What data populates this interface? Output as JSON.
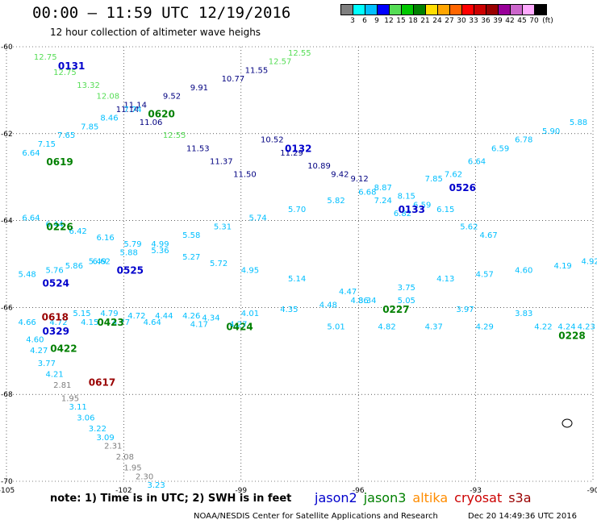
{
  "header": {
    "title": "00:00 – 11:59 UTC 12/19/2016",
    "subtitle": "12 hour collection of altimeter wave heighs"
  },
  "legend": {
    "labels": [
      "3",
      "6",
      "9",
      "12",
      "15",
      "18",
      "21",
      "24",
      "27",
      "30",
      "33",
      "36",
      "39",
      "42",
      "45",
      "70"
    ],
    "unit": "(ft)",
    "colors": [
      "#7f7f7f",
      "#00ffff",
      "#00bfff",
      "#0000ff",
      "#55dd55",
      "#00c800",
      "#008000",
      "#ffdd00",
      "#ffa500",
      "#ff6600",
      "#ff0000",
      "#cc0000",
      "#990000",
      "#990099",
      "#cc66cc",
      "#ffaaff",
      "#000000"
    ]
  },
  "footer": {
    "note": "note: 1) Time is in UTC; 2) SWH is in feet",
    "satellites": [
      {
        "name": "jason2",
        "color": "#0000cc"
      },
      {
        "name": "jason3",
        "color": "#008000"
      },
      {
        "name": "altika",
        "color": "#ff8c00"
      },
      {
        "name": "cryosat",
        "color": "#cc0000"
      },
      {
        "name": "s3a",
        "color": "#990000"
      }
    ],
    "credit": "NOAA/NESDIS Center for Satellite Applications and Research",
    "timestamp": "Dec 20 14:49:36 UTC 2016"
  },
  "chart_data": {
    "type": "scatter",
    "xlim": [
      -105,
      -90
    ],
    "ylim": [
      -70,
      -60
    ],
    "x_ticks": [
      -105,
      -102,
      -99,
      -96,
      -93,
      -90
    ],
    "y_ticks": [
      -60,
      -62,
      -64,
      -66,
      -68,
      -70
    ],
    "tracks": [
      {
        "label": "0131",
        "color": "#0000cc",
        "points": [
          {
            "x": -104.3,
            "y": -60.3,
            "v": "12.75",
            "c": "#55dd55"
          },
          {
            "x": -103.8,
            "y": -60.65,
            "v": "12.75",
            "c": "#55dd55"
          },
          {
            "x": -103.2,
            "y": -60.95,
            "v": "13.32",
            "c": "#55dd55"
          },
          {
            "x": -102.7,
            "y": -61.2,
            "v": "12.08",
            "c": "#55dd55"
          },
          {
            "x": -102.2,
            "y": -61.5,
            "v": "11.14",
            "c": "#000080"
          },
          {
            "x": -101.6,
            "y": -61.8,
            "v": "11.06",
            "c": "#000080"
          },
          {
            "x": -101.0,
            "y": -62.1,
            "v": "12.55",
            "c": "#55dd55"
          },
          {
            "x": -100.4,
            "y": -62.4,
            "v": "11.53",
            "c": "#000080"
          },
          {
            "x": -99.8,
            "y": -62.7,
            "v": "11.37",
            "c": "#000080"
          },
          {
            "x": -99.2,
            "y": -63.0,
            "v": "11.50",
            "c": "#000080"
          }
        ]
      },
      {
        "label": "0620",
        "color": "#008000",
        "points": [
          {
            "x": -102.0,
            "y": -61.4,
            "v": "11.14",
            "c": "#000080"
          },
          {
            "x": -101.0,
            "y": -61.2,
            "v": "9.52",
            "c": "#000080"
          },
          {
            "x": -100.3,
            "y": -61.0,
            "v": "9.91",
            "c": "#000080"
          },
          {
            "x": -99.5,
            "y": -60.8,
            "v": "10.77",
            "c": "#000080"
          },
          {
            "x": -98.9,
            "y": -60.6,
            "v": "11.55",
            "c": "#000080"
          },
          {
            "x": -98.3,
            "y": -60.4,
            "v": "12.57",
            "c": "#55dd55"
          },
          {
            "x": -97.8,
            "y": -60.2,
            "v": "12.55",
            "c": "#55dd55"
          }
        ]
      },
      {
        "label": "0132",
        "color": "#0000cc",
        "points": [
          {
            "x": -98.5,
            "y": -62.2,
            "v": "10.52",
            "c": "#000080"
          },
          {
            "x": -98.0,
            "y": -62.5,
            "v": "11.29",
            "c": "#000080"
          },
          {
            "x": -97.3,
            "y": -62.8,
            "v": "10.89",
            "c": "#000080"
          },
          {
            "x": -96.7,
            "y": -63.0,
            "v": "9.42",
            "c": "#000080"
          },
          {
            "x": -96.2,
            "y": -63.1,
            "v": "9.12",
            "c": "#000080"
          },
          {
            "x": -95.6,
            "y": -63.3,
            "v": "8.87",
            "c": "#00bfff"
          },
          {
            "x": -95.0,
            "y": -63.5,
            "v": "8.15",
            "c": "#00bfff"
          }
        ]
      },
      {
        "label": "0526",
        "color": "#0000cc",
        "points": [
          {
            "x": -94.3,
            "y": -63.1,
            "v": "7.85",
            "c": "#00bfff"
          },
          {
            "x": -93.8,
            "y": -63.0,
            "v": "7.62",
            "c": "#00bfff"
          },
          {
            "x": -93.2,
            "y": -62.7,
            "v": "6.64",
            "c": "#00bfff"
          },
          {
            "x": -92.6,
            "y": -62.4,
            "v": "6.59",
            "c": "#00bfff"
          },
          {
            "x": -92.0,
            "y": -62.2,
            "v": "6.78",
            "c": "#00bfff"
          },
          {
            "x": -91.3,
            "y": -62.0,
            "v": "5.90",
            "c": "#00bfff"
          },
          {
            "x": -90.6,
            "y": -61.8,
            "v": "5.88",
            "c": "#00bfff"
          }
        ]
      },
      {
        "label": "0619",
        "color": "#008000",
        "points": [
          {
            "x": -104.6,
            "y": -62.5,
            "v": "6.64",
            "c": "#00bfff"
          },
          {
            "x": -104.2,
            "y": -62.3,
            "v": "7.15",
            "c": "#00bfff"
          },
          {
            "x": -103.7,
            "y": -62.1,
            "v": "7.65",
            "c": "#00bfff"
          },
          {
            "x": -103.1,
            "y": -61.9,
            "v": "7.85",
            "c": "#00bfff"
          },
          {
            "x": -102.6,
            "y": -61.7,
            "v": "8.46",
            "c": "#00bfff"
          },
          {
            "x": -102.0,
            "y": -61.5,
            "v": "7.74",
            "c": "#00bfff"
          }
        ]
      },
      {
        "label": "0133",
        "color": "#0000cc",
        "points": [
          {
            "x": -95.6,
            "y": -63.6,
            "v": "7.24",
            "c": "#00bfff"
          },
          {
            "x": -95.1,
            "y": -63.9,
            "v": "6.82",
            "c": "#00bfff"
          },
          {
            "x": -94.6,
            "y": -63.7,
            "v": "6.59",
            "c": "#00bfff"
          },
          {
            "x": -94.0,
            "y": -63.8,
            "v": "6.15",
            "c": "#00bfff"
          },
          {
            "x": -93.4,
            "y": -64.2,
            "v": "5.62",
            "c": "#00bfff"
          },
          {
            "x": -92.9,
            "y": -64.4,
            "v": "4.67",
            "c": "#00bfff"
          }
        ]
      },
      {
        "label": "0226",
        "color": "#008000",
        "points": [
          {
            "x": -104.6,
            "y": -64.0,
            "v": "6.64",
            "c": "#00bfff"
          },
          {
            "x": -104.0,
            "y": -64.15,
            "v": "6.44",
            "c": "#00bfff"
          },
          {
            "x": -103.4,
            "y": -64.3,
            "v": "6.42",
            "c": "#00bfff"
          },
          {
            "x": -102.7,
            "y": -64.45,
            "v": "6.16",
            "c": "#00bfff"
          },
          {
            "x": -102.0,
            "y": -64.6,
            "v": "5.79",
            "c": "#00bfff"
          },
          {
            "x": -101.3,
            "y": -64.75,
            "v": "5.36",
            "c": "#00bfff"
          },
          {
            "x": -100.5,
            "y": -64.9,
            "v": "5.27",
            "c": "#00bfff"
          },
          {
            "x": -99.8,
            "y": -65.05,
            "v": "5.72",
            "c": "#00bfff"
          },
          {
            "x": -99.0,
            "y": -65.2,
            "v": "4.95",
            "c": "#00bfff"
          },
          {
            "x": -97.8,
            "y": -65.4,
            "v": "5.14",
            "c": "#00bfff"
          },
          {
            "x": -96.5,
            "y": -65.7,
            "v": "4.47",
            "c": "#00bfff"
          },
          {
            "x": -95.0,
            "y": -65.9,
            "v": "5.05",
            "c": "#00bfff"
          },
          {
            "x": -93.5,
            "y": -66.1,
            "v": "3.97",
            "c": "#00bfff"
          },
          {
            "x": -92.0,
            "y": -66.2,
            "v": "3.83",
            "c": "#00bfff"
          }
        ]
      },
      {
        "label": "0525",
        "color": "#0000cc",
        "points": [
          {
            "x": -102.8,
            "y": -65.0,
            "v": "6.62",
            "c": "#00bfff"
          },
          {
            "x": -102.1,
            "y": -64.8,
            "v": "5.88",
            "c": "#00bfff"
          },
          {
            "x": -101.3,
            "y": -64.6,
            "v": "4.99",
            "c": "#00bfff"
          },
          {
            "x": -100.5,
            "y": -64.4,
            "v": "5.58",
            "c": "#00bfff"
          },
          {
            "x": -99.7,
            "y": -64.2,
            "v": "5.31",
            "c": "#00bfff"
          },
          {
            "x": -98.8,
            "y": -64.0,
            "v": "5.74",
            "c": "#00bfff"
          },
          {
            "x": -97.8,
            "y": -63.8,
            "v": "5.70",
            "c": "#00bfff"
          },
          {
            "x": -96.8,
            "y": -63.6,
            "v": "5.82",
            "c": "#00bfff"
          },
          {
            "x": -96.0,
            "y": -63.4,
            "v": "6.68",
            "c": "#00bfff"
          }
        ]
      },
      {
        "label": "0524",
        "color": "#0000cc",
        "points": [
          {
            "x": -104.7,
            "y": -65.3,
            "v": "5.48",
            "c": "#00bfff"
          },
          {
            "x": -104.0,
            "y": -65.2,
            "v": "5.76",
            "c": "#00bfff"
          },
          {
            "x": -103.5,
            "y": -65.1,
            "v": "5.86",
            "c": "#00bfff"
          },
          {
            "x": -102.9,
            "y": -65.0,
            "v": "5.49",
            "c": "#00bfff"
          }
        ]
      },
      {
        "label": "0227",
        "color": "#008000",
        "points": [
          {
            "x": -96.0,
            "y": -65.9,
            "v": "3.34",
            "c": "#00bfff"
          },
          {
            "x": -95.0,
            "y": -65.6,
            "v": "3.75",
            "c": "#00bfff"
          },
          {
            "x": -94.0,
            "y": -65.4,
            "v": "4.13",
            "c": "#00bfff"
          },
          {
            "x": -93.0,
            "y": -65.3,
            "v": "4.57",
            "c": "#00bfff"
          },
          {
            "x": -92.0,
            "y": -65.2,
            "v": "4.60",
            "c": "#00bfff"
          },
          {
            "x": -91.0,
            "y": -65.1,
            "v": "4.19",
            "c": "#00bfff"
          },
          {
            "x": -90.3,
            "y": -65.0,
            "v": "4.92",
            "c": "#00bfff"
          }
        ]
      },
      {
        "label": "0424",
        "color": "#008000",
        "points": [
          {
            "x": -100.0,
            "y": -66.3,
            "v": "4.34",
            "c": "#00bfff"
          },
          {
            "x": -99.0,
            "y": -66.2,
            "v": "4.01",
            "c": "#00bfff"
          },
          {
            "x": -98.0,
            "y": -66.1,
            "v": "4.35",
            "c": "#00bfff"
          },
          {
            "x": -97.0,
            "y": -66.0,
            "v": "4.48",
            "c": "#00bfff"
          },
          {
            "x": -96.2,
            "y": -65.9,
            "v": "4.86",
            "c": "#00bfff"
          }
        ]
      },
      {
        "label": "0228",
        "color": "#008000",
        "points": [
          {
            "x": -91.5,
            "y": -66.5,
            "v": "4.22",
            "c": "#00bfff"
          },
          {
            "x": -90.9,
            "y": -66.5,
            "v": "4.24",
            "c": "#00bfff"
          },
          {
            "x": -90.4,
            "y": -66.5,
            "v": "4.23",
            "c": "#00bfff"
          }
        ]
      },
      {
        "label": "0329",
        "color": "#0000cc",
        "points": [
          {
            "x": -104.7,
            "y": -66.4,
            "v": "4.66",
            "c": "#00bfff"
          },
          {
            "x": -103.9,
            "y": -66.4,
            "v": "4.72",
            "c": "#00bfff"
          },
          {
            "x": -103.1,
            "y": -66.4,
            "v": "4.15",
            "c": "#00bfff"
          },
          {
            "x": -102.3,
            "y": -66.4,
            "v": "4.77",
            "c": "#00bfff"
          },
          {
            "x": -101.5,
            "y": -66.4,
            "v": "4.64",
            "c": "#00bfff"
          },
          {
            "x": -100.3,
            "y": -66.45,
            "v": "4.17",
            "c": "#00bfff"
          },
          {
            "x": -99.3,
            "y": -66.45,
            "v": "4.27",
            "c": "#00bfff"
          },
          {
            "x": -96.8,
            "y": -66.5,
            "v": "5.01",
            "c": "#00bfff"
          },
          {
            "x": -95.5,
            "y": -66.5,
            "v": "4.82",
            "c": "#00bfff"
          },
          {
            "x": -94.3,
            "y": -66.5,
            "v": "4.37",
            "c": "#00bfff"
          },
          {
            "x": -93.0,
            "y": -66.5,
            "v": "4.29",
            "c": "#00bfff"
          }
        ]
      },
      {
        "label": "0423",
        "color": "#008000",
        "points": [
          {
            "x": -103.3,
            "y": -66.2,
            "v": "5.15",
            "c": "#00bfff"
          },
          {
            "x": -102.6,
            "y": -66.2,
            "v": "4.79",
            "c": "#00bfff"
          },
          {
            "x": -101.9,
            "y": -66.25,
            "v": "4.72",
            "c": "#00bfff"
          },
          {
            "x": -101.2,
            "y": -66.25,
            "v": "4.44",
            "c": "#00bfff"
          },
          {
            "x": -100.5,
            "y": -66.25,
            "v": "4.26",
            "c": "#00bfff"
          }
        ]
      },
      {
        "label": "0422",
        "color": "#008000",
        "points": [
          {
            "x": -104.5,
            "y": -66.8,
            "v": "4.60",
            "c": "#00bfff"
          },
          {
            "x": -104.4,
            "y": -67.05,
            "v": "4.27",
            "c": "#00bfff"
          },
          {
            "x": -104.2,
            "y": -67.35,
            "v": "3.77",
            "c": "#00bfff"
          },
          {
            "x": -104.0,
            "y": -67.6,
            "v": "4.21",
            "c": "#00bfff"
          },
          {
            "x": -103.8,
            "y": -67.85,
            "v": "2.81",
            "c": "#7f7f7f"
          },
          {
            "x": -103.6,
            "y": -68.15,
            "v": "1.95",
            "c": "#7f7f7f"
          },
          {
            "x": -103.4,
            "y": -68.35,
            "v": "3.11",
            "c": "#00bfff"
          },
          {
            "x": -103.2,
            "y": -68.6,
            "v": "3.06",
            "c": "#00bfff"
          },
          {
            "x": -102.9,
            "y": -68.85,
            "v": "3.22",
            "c": "#00bfff"
          },
          {
            "x": -102.7,
            "y": -69.05,
            "v": "3.09",
            "c": "#00bfff"
          },
          {
            "x": -102.5,
            "y": -69.25,
            "v": "2.31",
            "c": "#7f7f7f"
          },
          {
            "x": -102.2,
            "y": -69.5,
            "v": "2.08",
            "c": "#7f7f7f"
          },
          {
            "x": -102.0,
            "y": -69.75,
            "v": "1.95",
            "c": "#7f7f7f"
          },
          {
            "x": -101.7,
            "y": -69.95,
            "v": "2.30",
            "c": "#7f7f7f"
          },
          {
            "x": -101.4,
            "y": -70.15,
            "v": "3.23",
            "c": "#00bfff"
          }
        ]
      }
    ],
    "tags": [
      {
        "label": "0618",
        "color": "#990000",
        "x": -104.1,
        "y": -66.3
      },
      {
        "label": "0617",
        "color": "#990000",
        "x": -102.9,
        "y": -67.8
      }
    ]
  }
}
